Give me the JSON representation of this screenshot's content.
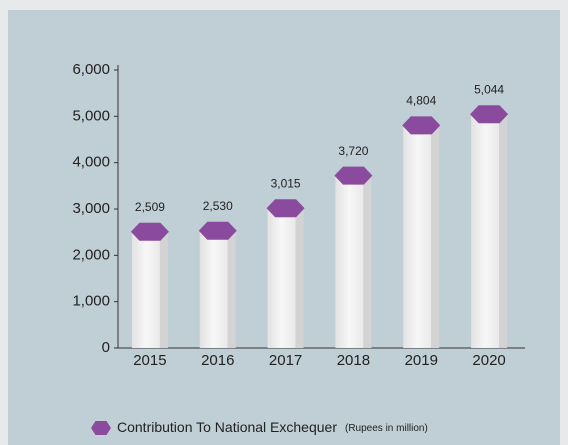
{
  "chart_data": {
    "type": "bar",
    "categories": [
      "2015",
      "2016",
      "2017",
      "2018",
      "2019",
      "2020"
    ],
    "series": [
      {
        "name": "Contribution To National Exchequer",
        "color": "#8a4b9e",
        "values": [
          2509,
          2530,
          3015,
          3720,
          4804,
          5044
        ],
        "value_labels": [
          "2,509",
          "2,530",
          "3,015",
          "3,720",
          "4,804",
          "5,044"
        ]
      }
    ],
    "legend_note": "(Rupees in million)",
    "ylim": [
      0,
      6000
    ],
    "yticks": [
      0,
      {
        "value": 1000,
        "label": "1,000"
      },
      {
        "value": 2000,
        "label": "2,000"
      },
      {
        "value": 3000,
        "label": "3,000"
      },
      {
        "value": 4000,
        "label": "4,000"
      },
      {
        "value": 5000,
        "label": "5,000"
      },
      {
        "value": 6000,
        "label": "6,000"
      }
    ],
    "legend": "bottom"
  }
}
